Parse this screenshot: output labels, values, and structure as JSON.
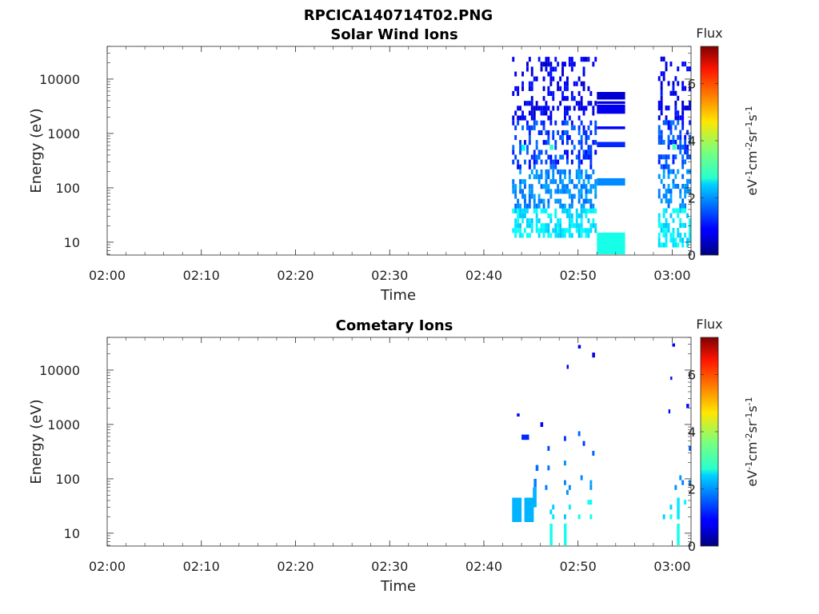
{
  "figure_title": "RPCICA140714T02.PNG",
  "chart_data": [
    {
      "type": "heatmap",
      "title": "Solar Wind Ions",
      "xlabel": "Time",
      "ylabel": "Energy (eV)",
      "x_ticks": [
        "02:00",
        "02:10",
        "02:20",
        "02:30",
        "02:40",
        "02:50",
        "03:00"
      ],
      "xlim": [
        "02:00",
        "03:02"
      ],
      "y_scale": "log",
      "y_ticks": [
        10,
        100,
        1000,
        10000
      ],
      "y_tick_labels": [
        "10",
        "100",
        "1000",
        "10000"
      ],
      "ylim": [
        5.8,
        40000
      ],
      "colorbar": {
        "label": "Flux",
        "unit_parts": [
          "eV",
          "-1",
          "cm",
          "-2",
          "sr",
          "-1",
          "s",
          "-1"
        ],
        "range": [
          0,
          7.3
        ],
        "ticks": [
          0,
          2,
          4,
          6
        ],
        "tick_labels": [
          "0",
          "2",
          "4",
          "6"
        ],
        "colormap": "jet"
      },
      "cells": [
        {
          "t0": "02:52",
          "t1": "02:55",
          "e0": 6,
          "e1": 15,
          "v": 2.9
        },
        {
          "t0": "02:52",
          "t1": "02:55",
          "e0": 110,
          "e1": 150,
          "v": 1.9
        },
        {
          "t0": "02:52",
          "t1": "02:55",
          "e0": 560,
          "e1": 700,
          "v": 1.2
        },
        {
          "t0": "02:52",
          "t1": "02:55",
          "e0": 1200,
          "e1": 1350,
          "v": 0.9
        },
        {
          "t0": "02:52",
          "t1": "02:55",
          "e0": 2300,
          "e1": 3400,
          "v": 0.8
        },
        {
          "t0": "02:52",
          "t1": "02:55",
          "e0": 4200,
          "e1": 5800,
          "v": 0.6
        },
        {
          "t0": "02:52",
          "t1": "02:55",
          "e0": 3500,
          "e1": 3900,
          "v": 0.7
        },
        {
          "t0": "02:44",
          "t1": "02:44.4",
          "e0": 480,
          "e1": 620,
          "v": 2.8
        },
        {
          "t0": "02:47",
          "t1": "02:47.4",
          "e0": 500,
          "e1": 620,
          "v": 3.1
        },
        {
          "t0": "03:00",
          "t1": "03:00.4",
          "e0": 500,
          "e1": 640,
          "v": 3.2
        }
      ],
      "scatter_blocks": [
        {
          "t0": "02:43",
          "t1": "02:52",
          "e_lo": 12,
          "e_hi": 25000,
          "density": "high"
        },
        {
          "t0": "02:58.5",
          "t1": "03:02",
          "e_lo": 8,
          "e_hi": 25000,
          "density": "high"
        }
      ]
    },
    {
      "type": "heatmap",
      "title": "Cometary Ions",
      "xlabel": "Time",
      "ylabel": "Energy (eV)",
      "x_ticks": [
        "02:00",
        "02:10",
        "02:20",
        "02:30",
        "02:40",
        "02:50",
        "03:00"
      ],
      "xlim": [
        "02:00",
        "03:02"
      ],
      "y_scale": "log",
      "y_ticks": [
        10,
        100,
        1000,
        10000
      ],
      "y_tick_labels": [
        "10",
        "100",
        "1000",
        "10000"
      ],
      "ylim": [
        5.8,
        40000
      ],
      "colorbar": {
        "label": "Flux",
        "unit_parts": [
          "eV",
          "-1",
          "cm",
          "-2",
          "sr",
          "-1",
          "s",
          "-1"
        ],
        "range": [
          0,
          7.3
        ],
        "ticks": [
          0,
          2,
          4,
          6
        ],
        "tick_labels": [
          "0",
          "2",
          "4",
          "6"
        ],
        "colormap": "jet"
      },
      "cells": [
        {
          "t0": "02:43",
          "t1": "02:44",
          "e0": 16,
          "e1": 45,
          "v": 2.2
        },
        {
          "t0": "02:44.3",
          "t1": "02:45.3",
          "e0": 16,
          "e1": 45,
          "v": 2.2
        },
        {
          "t0": "02:44",
          "t1": "02:44.8",
          "e0": 520,
          "e1": 650,
          "v": 1.2
        },
        {
          "t0": "02:43.5",
          "t1": "02:43.8",
          "e0": 1400,
          "e1": 1600,
          "v": 1.0
        },
        {
          "t0": "02:45.2",
          "t1": "02:45.6",
          "e0": 30,
          "e1": 70,
          "v": 2.2
        },
        {
          "t0": "02:45.3",
          "t1": "02:45.6",
          "e0": 70,
          "e1": 100,
          "v": 1.8
        },
        {
          "t0": "02:45.5",
          "t1": "02:45.8",
          "e0": 140,
          "e1": 180,
          "v": 1.7
        },
        {
          "t0": "02:46",
          "t1": "02:46.3",
          "e0": 900,
          "e1": 1100,
          "v": 0.9
        },
        {
          "t0": "02:47",
          "t1": "02:47.3",
          "e0": 6,
          "e1": 15,
          "v": 2.9
        },
        {
          "t0": "02:48.5",
          "t1": "02:48.8",
          "e0": 6,
          "e1": 15,
          "v": 2.9
        },
        {
          "t0": "02:50",
          "t1": "02:50.3",
          "e0": 25000,
          "e1": 29000,
          "v": 0.8
        },
        {
          "t0": "02:51.5",
          "t1": "02:51.8",
          "e0": 17000,
          "e1": 21000,
          "v": 0.7
        },
        {
          "t0": "02:48.8",
          "t1": "02:49",
          "e0": 10500,
          "e1": 12500,
          "v": 0.8
        },
        {
          "t0": "03:00",
          "t1": "03:00.3",
          "e0": 27000,
          "e1": 31000,
          "v": 0.8
        },
        {
          "t0": "02:59.8",
          "t1": "03:00",
          "e0": 6600,
          "e1": 7600,
          "v": 1.0
        },
        {
          "t0": "03:00.5",
          "t1": "03:00.8",
          "e0": 6,
          "e1": 15,
          "v": 2.9
        },
        {
          "t0": "03:00.5",
          "t1": "03:00.8",
          "e0": 18,
          "e1": 45,
          "v": 2.6
        },
        {
          "t0": "03:01.5",
          "t1": "03:01.8",
          "e0": 2000,
          "e1": 2400,
          "v": 1.0
        },
        {
          "t0": "02:59.6",
          "t1": "02:59.8",
          "e0": 1600,
          "e1": 1900,
          "v": 1.0
        }
      ],
      "scatter_blocks": [
        {
          "t0": "02:46.5",
          "t1": "02:52",
          "e_lo": 18,
          "e_hi": 700,
          "density": "low"
        },
        {
          "t0": "02:58.5",
          "t1": "03:02",
          "e_lo": 18,
          "e_hi": 700,
          "density": "low"
        }
      ]
    }
  ]
}
